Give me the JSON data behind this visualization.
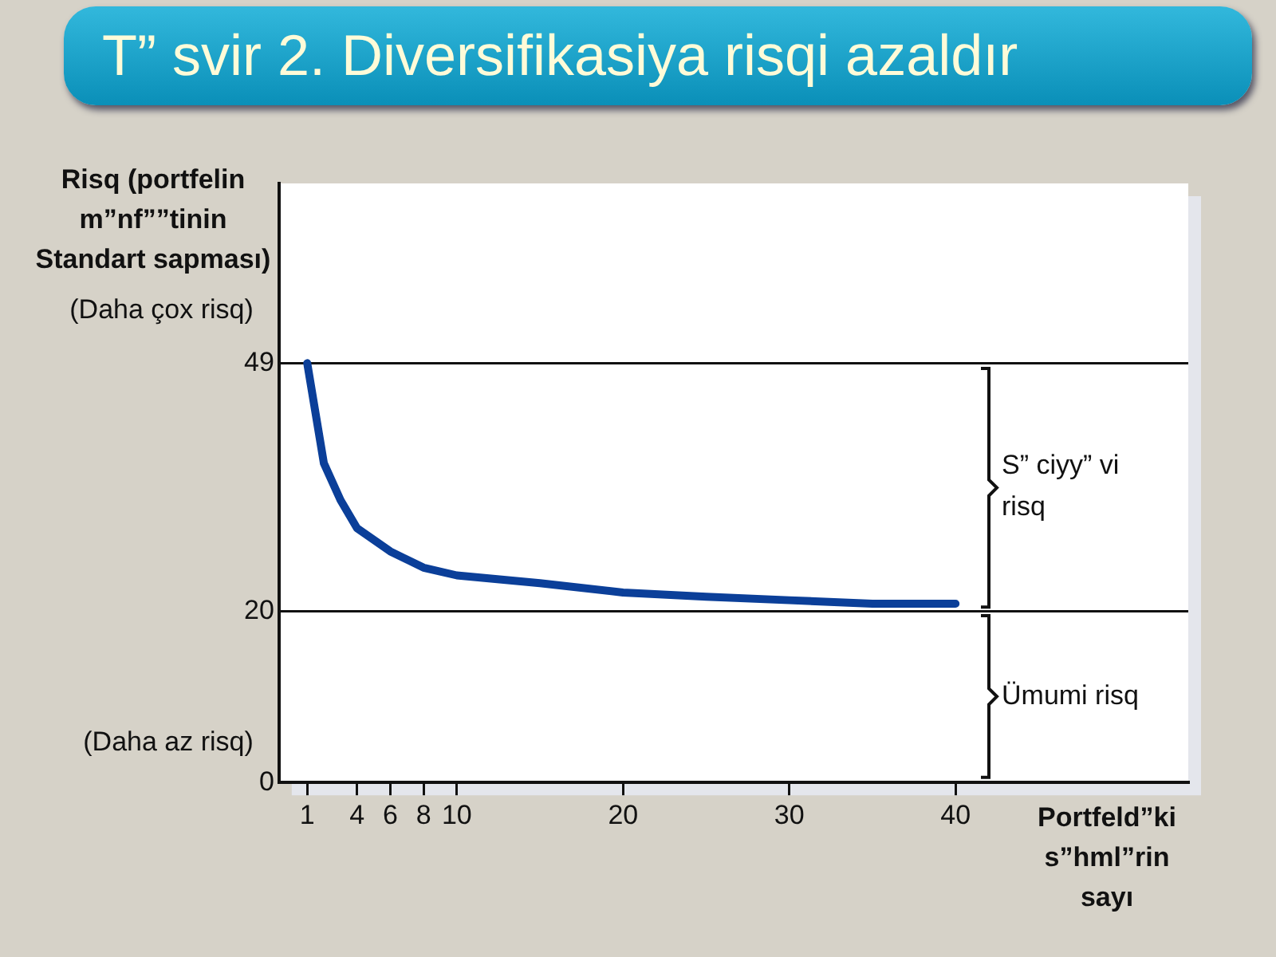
{
  "chart_data": {
    "type": "line",
    "title": "T” svir 2. Diversifikasiya risqi azaldır",
    "ylabel": "Risq (portfelin m”nf””tinin Standart sapması)",
    "xlabel": "Portfeld”ki s”hml”rin sayı",
    "x": [
      1,
      2,
      3,
      4,
      6,
      8,
      10,
      15,
      20,
      25,
      30,
      35,
      40
    ],
    "series": [
      {
        "color": "#0b3f99",
        "values": [
          49,
          37.3,
          33,
          29.7,
          27,
          25.1,
          24.2,
          23.3,
          22.2,
          21.7,
          21.3,
          20.9,
          20.9
        ]
      }
    ],
    "xlim": [
      -0.7,
      54
    ],
    "xticks": [
      1,
      4,
      6,
      8,
      10,
      20,
      30,
      40
    ],
    "ylim": [
      0,
      70
    ],
    "yticks": [
      0,
      20,
      49
    ],
    "grid": "y",
    "legend": false,
    "marker": "none",
    "line_style": "solid",
    "annotations": [
      "(Daha çox risq)",
      "(Daha az risq)",
      "S” ciyy” vi risq",
      "Ümumi risq"
    ]
  }
}
